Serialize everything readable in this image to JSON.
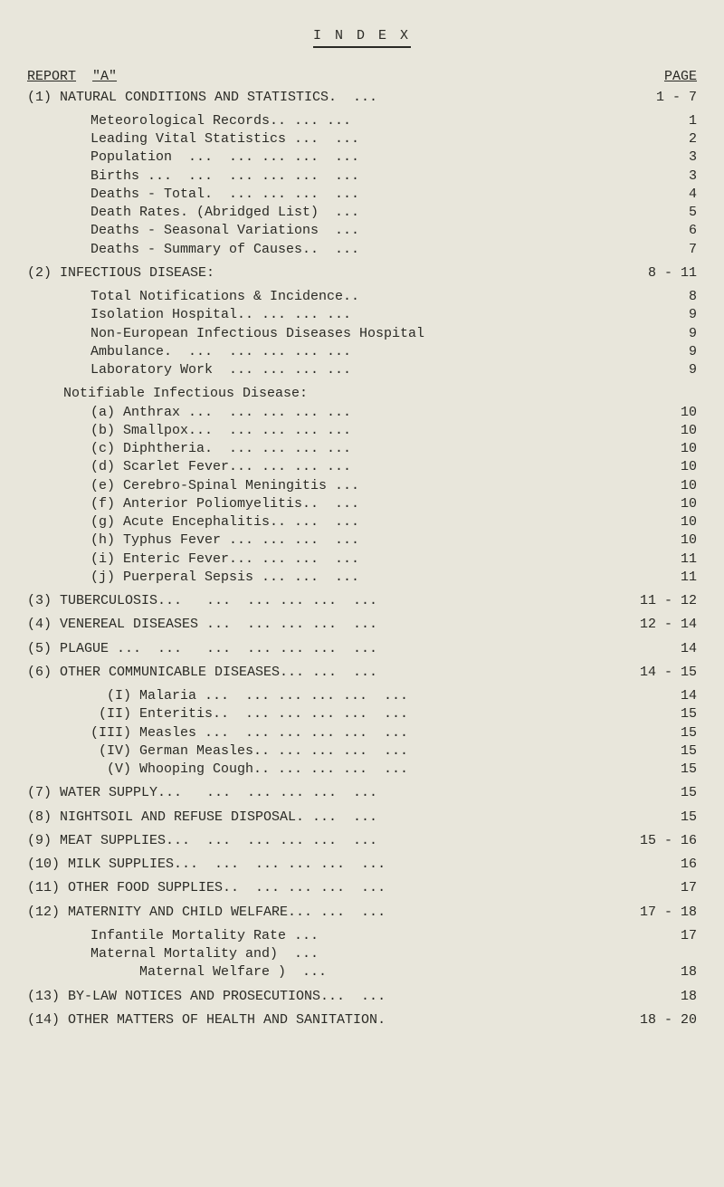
{
  "title_spaced": "I N D E X",
  "report_label": "REPORT",
  "report_id": "\"A\"",
  "page_label": "PAGE",
  "sections": [
    {
      "num": "(1)",
      "title": "NATURAL CONDITIONS AND STATISTICS.  ...",
      "page": "1 -  7",
      "items": [
        {
          "text": "Meteorological Records.. ... ...",
          "page": "1"
        },
        {
          "text": "Leading Vital Statistics ...  ...",
          "page": "2"
        },
        {
          "text": "Population  ...  ... ... ...  ...",
          "page": "3"
        },
        {
          "text": "Births ...  ...  ... ... ...  ...",
          "page": "3"
        },
        {
          "text": "Deaths - Total.  ... ... ...  ...",
          "page": "4"
        },
        {
          "text": "Death Rates. (Abridged List)  ...",
          "page": "5"
        },
        {
          "text": "Deaths - Seasonal Variations  ...",
          "page": "6"
        },
        {
          "text": "Deaths - Summary of Causes..  ...",
          "page": "7"
        }
      ]
    },
    {
      "num": "(2)",
      "title": "INFECTIOUS DISEASE:",
      "page": "8 - 11",
      "items": [
        {
          "text": "Total Notifications & Incidence..",
          "page": "8"
        },
        {
          "text": "Isolation Hospital.. ... ... ...",
          "page": "9"
        },
        {
          "text": "Non-European Infectious Diseases Hospital",
          "page": "9"
        },
        {
          "text": "Ambulance.  ...  ... ... ... ...",
          "page": "9"
        },
        {
          "text": "Laboratory Work  ... ... ... ...",
          "page": "9"
        }
      ],
      "subhead": "Notifiable Infectious Disease:",
      "subitems": [
        {
          "text": "(a) Anthrax ...  ... ... ... ...",
          "page": "10"
        },
        {
          "text": "(b) Smallpox...  ... ... ... ...",
          "page": "10"
        },
        {
          "text": "(c) Diphtheria.  ... ... ... ...",
          "page": "10"
        },
        {
          "text": "(d) Scarlet Fever... ... ... ...",
          "page": "10"
        },
        {
          "text": "(e) Cerebro-Spinal Meningitis ...",
          "page": "10"
        },
        {
          "text": "(f) Anterior Poliomyelitis..  ...",
          "page": "10"
        },
        {
          "text": "(g) Acute Encephalitis.. ...  ...",
          "page": "10"
        },
        {
          "text": "(h) Typhus Fever ... ... ...  ...",
          "page": "10"
        },
        {
          "text": "(i) Enteric Fever... ... ...  ...",
          "page": "11"
        },
        {
          "text": "(j) Puerperal Sepsis ... ...  ...",
          "page": "11"
        }
      ]
    },
    {
      "num": "(3)",
      "title": "TUBERCULOSIS...   ...  ... ... ...  ...",
      "page": "11 - 12"
    },
    {
      "num": "(4)",
      "title": "VENEREAL DISEASES ...  ... ... ...  ...",
      "page": "12 - 14"
    },
    {
      "num": "(5)",
      "title": "PLAGUE ...  ...   ...  ... ... ...  ...",
      "page": "14"
    },
    {
      "num": "(6)",
      "title": "OTHER COMMUNICABLE DISEASES... ...  ...",
      "page": "14 - 15",
      "items": [
        {
          "text": "  (I) Malaria ...  ... ... ... ...  ...",
          "page": "14"
        },
        {
          "text": " (II) Enteritis..  ... ... ... ...  ...",
          "page": "15"
        },
        {
          "text": "(III) Measles ...  ... ... ... ...  ...",
          "page": "15"
        },
        {
          "text": " (IV) German Measles.. ... ... ...  ...",
          "page": "15"
        },
        {
          "text": "  (V) Whooping Cough.. ... ... ...  ...",
          "page": "15"
        }
      ]
    },
    {
      "num": "(7)",
      "title": "WATER SUPPLY...   ...  ... ... ...  ...",
      "page": "15"
    },
    {
      "num": "(8)",
      "title": "NIGHTSOIL AND REFUSE DISPOSAL. ...  ...",
      "page": "15"
    },
    {
      "num": "(9)",
      "title": "MEAT SUPPLIES...  ...  ... ... ...  ...",
      "page": "15 - 16"
    },
    {
      "num": "(10)",
      "title": "MILK SUPPLIES...  ...  ... ... ...  ...",
      "page": "16"
    },
    {
      "num": "(11)",
      "title": "OTHER FOOD SUPPLIES..  ... ... ...  ...",
      "page": "17"
    },
    {
      "num": "(12)",
      "title": "MATERNITY AND CHILD WELFARE... ...  ...",
      "page": "17 - 18",
      "items": [
        {
          "text": "Infantile Mortality Rate ...",
          "page": "17"
        },
        {
          "text": "Maternal Mortality and)  ...",
          "page": ""
        },
        {
          "text": "      Maternal Welfare )  ...",
          "page": "18"
        }
      ]
    },
    {
      "num": "(13)",
      "title": "BY-LAW NOTICES AND PROSECUTIONS...  ...",
      "page": "18"
    },
    {
      "num": "(14)",
      "title": "OTHER MATTERS OF HEALTH AND SANITATION.",
      "page": "18 - 20"
    }
  ]
}
